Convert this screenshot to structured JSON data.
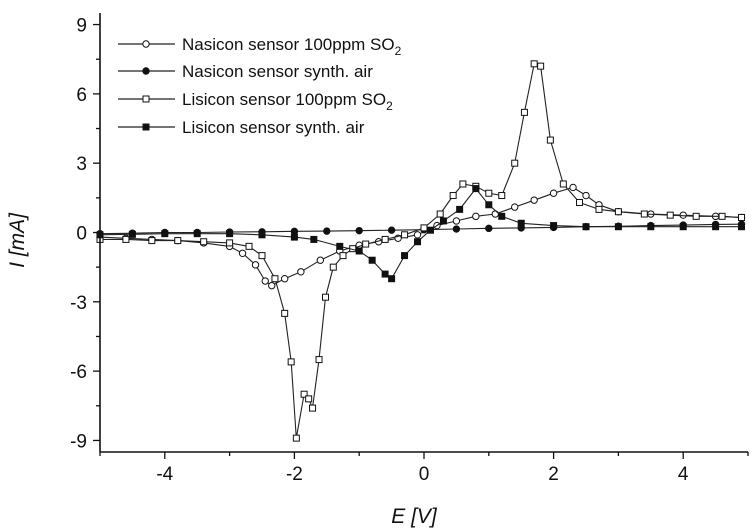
{
  "chart_data": {
    "type": "line",
    "title": "",
    "xlabel": "E [V]",
    "ylabel": "I [mA]",
    "xlim": [
      -5,
      5
    ],
    "ylim": [
      -9.5,
      9.5
    ],
    "x_ticks": [
      -4,
      -2,
      0,
      2,
      4
    ],
    "y_ticks": [
      -9,
      -6,
      -3,
      0,
      3,
      6,
      9
    ],
    "grid": false,
    "legend_position": "top-left",
    "series": [
      {
        "name": "Nasicon sensor 100ppm SO",
        "name_subscript": "2",
        "marker": "open-circle",
        "points": [
          [
            -5.0,
            -0.2
          ],
          [
            -4.6,
            -0.25
          ],
          [
            -4.2,
            -0.3
          ],
          [
            -3.8,
            -0.35
          ],
          [
            -3.4,
            -0.45
          ],
          [
            -3.0,
            -0.6
          ],
          [
            -2.8,
            -0.9
          ],
          [
            -2.6,
            -1.4
          ],
          [
            -2.45,
            -2.1
          ],
          [
            -2.35,
            -2.3
          ],
          [
            -2.15,
            -2.0
          ],
          [
            -1.9,
            -1.7
          ],
          [
            -1.6,
            -1.2
          ],
          [
            -1.3,
            -0.8
          ],
          [
            -1.0,
            -0.55
          ],
          [
            -0.7,
            -0.4
          ],
          [
            -0.4,
            -0.25
          ],
          [
            -0.1,
            -0.1
          ],
          [
            0.2,
            0.3
          ],
          [
            0.5,
            0.5
          ],
          [
            0.8,
            0.7
          ],
          [
            1.1,
            0.8
          ],
          [
            1.4,
            1.1
          ],
          [
            1.7,
            1.4
          ],
          [
            2.0,
            1.7
          ],
          [
            2.3,
            1.95
          ],
          [
            2.5,
            1.6
          ],
          [
            2.7,
            1.2
          ],
          [
            3.0,
            0.9
          ],
          [
            3.5,
            0.8
          ],
          [
            4.0,
            0.75
          ],
          [
            4.5,
            0.7
          ],
          [
            4.9,
            0.65
          ]
        ]
      },
      {
        "name": "Nasicon sensor synth. air",
        "marker": "filled-circle",
        "points": [
          [
            -5.0,
            -0.05
          ],
          [
            -4.5,
            -0.03
          ],
          [
            -4.0,
            0.0
          ],
          [
            -3.5,
            0.0
          ],
          [
            -3.0,
            0.02
          ],
          [
            -2.5,
            0.03
          ],
          [
            -2.0,
            0.05
          ],
          [
            -1.5,
            0.06
          ],
          [
            -1.0,
            0.08
          ],
          [
            -0.5,
            0.1
          ],
          [
            0.0,
            0.12
          ],
          [
            0.5,
            0.15
          ],
          [
            1.0,
            0.18
          ],
          [
            1.5,
            0.2
          ],
          [
            2.0,
            0.22
          ],
          [
            2.5,
            0.25
          ],
          [
            3.0,
            0.27
          ],
          [
            3.5,
            0.3
          ],
          [
            4.0,
            0.32
          ],
          [
            4.5,
            0.35
          ],
          [
            4.9,
            0.36
          ]
        ]
      },
      {
        "name": "Lisicon sensor 100ppm SO",
        "name_subscript": "2",
        "marker": "open-square",
        "points": [
          [
            -5.0,
            -0.3
          ],
          [
            -4.6,
            -0.3
          ],
          [
            -4.2,
            -0.35
          ],
          [
            -3.8,
            -0.35
          ],
          [
            -3.4,
            -0.4
          ],
          [
            -3.0,
            -0.45
          ],
          [
            -2.7,
            -0.6
          ],
          [
            -2.5,
            -1.0
          ],
          [
            -2.3,
            -2.0
          ],
          [
            -2.15,
            -3.5
          ],
          [
            -2.05,
            -5.6
          ],
          [
            -1.97,
            -8.9
          ],
          [
            -1.85,
            -7.0
          ],
          [
            -1.78,
            -7.2
          ],
          [
            -1.72,
            -7.6
          ],
          [
            -1.62,
            -5.5
          ],
          [
            -1.52,
            -2.8
          ],
          [
            -1.4,
            -1.5
          ],
          [
            -1.25,
            -1.0
          ],
          [
            -1.1,
            -0.7
          ],
          [
            -0.9,
            -0.5
          ],
          [
            -0.6,
            -0.3
          ],
          [
            -0.3,
            -0.1
          ],
          [
            0.0,
            0.2
          ],
          [
            0.25,
            0.8
          ],
          [
            0.45,
            1.6
          ],
          [
            0.6,
            2.1
          ],
          [
            0.8,
            2.0
          ],
          [
            1.0,
            1.7
          ],
          [
            1.2,
            1.6
          ],
          [
            1.4,
            3.0
          ],
          [
            1.55,
            5.2
          ],
          [
            1.7,
            7.3
          ],
          [
            1.8,
            7.2
          ],
          [
            1.95,
            4.0
          ],
          [
            2.15,
            2.1
          ],
          [
            2.4,
            1.3
          ],
          [
            2.7,
            1.0
          ],
          [
            3.0,
            0.9
          ],
          [
            3.4,
            0.8
          ],
          [
            3.8,
            0.75
          ],
          [
            4.2,
            0.7
          ],
          [
            4.6,
            0.7
          ],
          [
            4.9,
            0.65
          ]
        ]
      },
      {
        "name": "Lisicon sensor synth. air",
        "marker": "filled-square",
        "points": [
          [
            -5.0,
            -0.1
          ],
          [
            -4.5,
            -0.08
          ],
          [
            -4.0,
            -0.05
          ],
          [
            -3.5,
            -0.05
          ],
          [
            -3.0,
            -0.05
          ],
          [
            -2.5,
            -0.1
          ],
          [
            -2.0,
            -0.2
          ],
          [
            -1.7,
            -0.3
          ],
          [
            -1.3,
            -0.6
          ],
          [
            -1.0,
            -0.8
          ],
          [
            -0.8,
            -1.2
          ],
          [
            -0.6,
            -1.8
          ],
          [
            -0.5,
            -2.0
          ],
          [
            -0.3,
            -1.0
          ],
          [
            -0.1,
            -0.4
          ],
          [
            0.1,
            0.1
          ],
          [
            0.3,
            0.5
          ],
          [
            0.55,
            1.0
          ],
          [
            0.8,
            1.9
          ],
          [
            1.0,
            1.2
          ],
          [
            1.2,
            0.7
          ],
          [
            1.5,
            0.4
          ],
          [
            2.0,
            0.3
          ],
          [
            2.5,
            0.25
          ],
          [
            3.0,
            0.25
          ],
          [
            3.5,
            0.25
          ],
          [
            4.0,
            0.25
          ],
          [
            4.5,
            0.25
          ],
          [
            4.9,
            0.25
          ]
        ]
      }
    ]
  }
}
